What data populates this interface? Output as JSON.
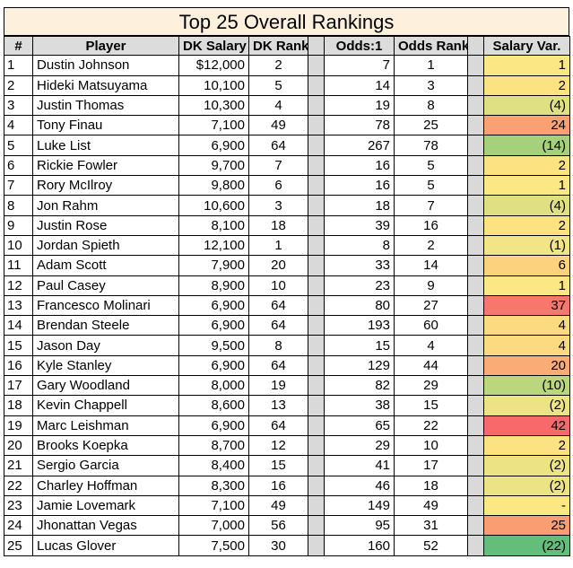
{
  "title": "Top 25 Overall Rankings",
  "headers": [
    "#",
    "Player",
    "DK Salary",
    "DK Rank",
    "Odds:1",
    "Odds Rank",
    "Salary Var."
  ],
  "rows": [
    {
      "num": "1",
      "player": "Dustin Johnson",
      "salary": "$12,000",
      "dk_rank": "2",
      "odds": "7",
      "odds_rank": "1",
      "var": "1",
      "var_color": "#fbe783"
    },
    {
      "num": "2",
      "player": "Hideki Matsuyama",
      "salary": "10,100",
      "dk_rank": "5",
      "odds": "14",
      "odds_rank": "3",
      "var": "2",
      "var_color": "#fde282"
    },
    {
      "num": "3",
      "player": "Justin Thomas",
      "salary": "10,300",
      "dk_rank": "4",
      "odds": "19",
      "odds_rank": "8",
      "var": "(4)",
      "var_color": "#dfe083"
    },
    {
      "num": "4",
      "player": "Tony Finau",
      "salary": "7,100",
      "dk_rank": "49",
      "odds": "78",
      "odds_rank": "25",
      "var": "24",
      "var_color": "#f8a173"
    },
    {
      "num": "5",
      "player": "Luke List",
      "salary": "6,900",
      "dk_rank": "64",
      "odds": "267",
      "odds_rank": "78",
      "var": "(14)",
      "var_color": "#a6d17b"
    },
    {
      "num": "6",
      "player": "Rickie Fowler",
      "salary": "9,700",
      "dk_rank": "7",
      "odds": "16",
      "odds_rank": "5",
      "var": "2",
      "var_color": "#fde282"
    },
    {
      "num": "7",
      "player": "Rory McIlroy",
      "salary": "9,800",
      "dk_rank": "6",
      "odds": "16",
      "odds_rank": "5",
      "var": "1",
      "var_color": "#fbe783"
    },
    {
      "num": "8",
      "player": "Jon Rahm",
      "salary": "10,600",
      "dk_rank": "3",
      "odds": "18",
      "odds_rank": "7",
      "var": "(4)",
      "var_color": "#dfe083"
    },
    {
      "num": "9",
      "player": "Justin Rose",
      "salary": "8,100",
      "dk_rank": "18",
      "odds": "39",
      "odds_rank": "16",
      "var": "2",
      "var_color": "#fde282"
    },
    {
      "num": "10",
      "player": "Jordan Spieth",
      "salary": "12,100",
      "dk_rank": "1",
      "odds": "8",
      "odds_rank": "2",
      "var": "(1)",
      "var_color": "#f3e585"
    },
    {
      "num": "11",
      "player": "Adam Scott",
      "salary": "7,900",
      "dk_rank": "20",
      "odds": "33",
      "odds_rank": "14",
      "var": "6",
      "var_color": "#fcd27e"
    },
    {
      "num": "12",
      "player": "Paul Casey",
      "salary": "8,900",
      "dk_rank": "10",
      "odds": "23",
      "odds_rank": "9",
      "var": "1",
      "var_color": "#fbe783"
    },
    {
      "num": "13",
      "player": "Francesco Molinari",
      "salary": "6,900",
      "dk_rank": "64",
      "odds": "80",
      "odds_rank": "27",
      "var": "37",
      "var_color": "#f8776d"
    },
    {
      "num": "14",
      "player": "Brendan Steele",
      "salary": "6,900",
      "dk_rank": "64",
      "odds": "193",
      "odds_rank": "60",
      "var": "4",
      "var_color": "#fcda80"
    },
    {
      "num": "15",
      "player": "Jason Day",
      "salary": "9,500",
      "dk_rank": "8",
      "odds": "15",
      "odds_rank": "4",
      "var": "4",
      "var_color": "#fcda80"
    },
    {
      "num": "16",
      "player": "Kyle Stanley",
      "salary": "6,900",
      "dk_rank": "64",
      "odds": "129",
      "odds_rank": "44",
      "var": "20",
      "var_color": "#f9ac75"
    },
    {
      "num": "17",
      "player": "Gary Woodland",
      "salary": "8,000",
      "dk_rank": "19",
      "odds": "82",
      "odds_rank": "29",
      "var": "(10)",
      "var_color": "#bbd77e"
    },
    {
      "num": "18",
      "player": "Kevin Chappell",
      "salary": "8,600",
      "dk_rank": "13",
      "odds": "38",
      "odds_rank": "15",
      "var": "(2)",
      "var_color": "#ece484"
    },
    {
      "num": "19",
      "player": "Marc Leishman",
      "salary": "6,900",
      "dk_rank": "64",
      "odds": "65",
      "odds_rank": "22",
      "var": "42",
      "var_color": "#f8696b"
    },
    {
      "num": "20",
      "player": "Brooks Koepka",
      "salary": "8,700",
      "dk_rank": "12",
      "odds": "29",
      "odds_rank": "10",
      "var": "2",
      "var_color": "#fde282"
    },
    {
      "num": "21",
      "player": "Sergio Garcia",
      "salary": "8,400",
      "dk_rank": "15",
      "odds": "41",
      "odds_rank": "17",
      "var": "(2)",
      "var_color": "#ece484"
    },
    {
      "num": "22",
      "player": "Charley Hoffman",
      "salary": "8,300",
      "dk_rank": "16",
      "odds": "46",
      "odds_rank": "18",
      "var": "(2)",
      "var_color": "#ece484"
    },
    {
      "num": "23",
      "player": "Jamie Lovemark",
      "salary": "7,100",
      "dk_rank": "49",
      "odds": "149",
      "odds_rank": "49",
      "var": "-",
      "var_color": "#fbe883"
    },
    {
      "num": "24",
      "player": "Jhonattan Vegas",
      "salary": "7,000",
      "dk_rank": "56",
      "odds": "95",
      "odds_rank": "31",
      "var": "25",
      "var_color": "#f89e72"
    },
    {
      "num": "25",
      "player": "Lucas Glover",
      "salary": "7,500",
      "dk_rank": "30",
      "odds": "160",
      "odds_rank": "52",
      "var": "(22)",
      "var_color": "#63be7b"
    }
  ]
}
